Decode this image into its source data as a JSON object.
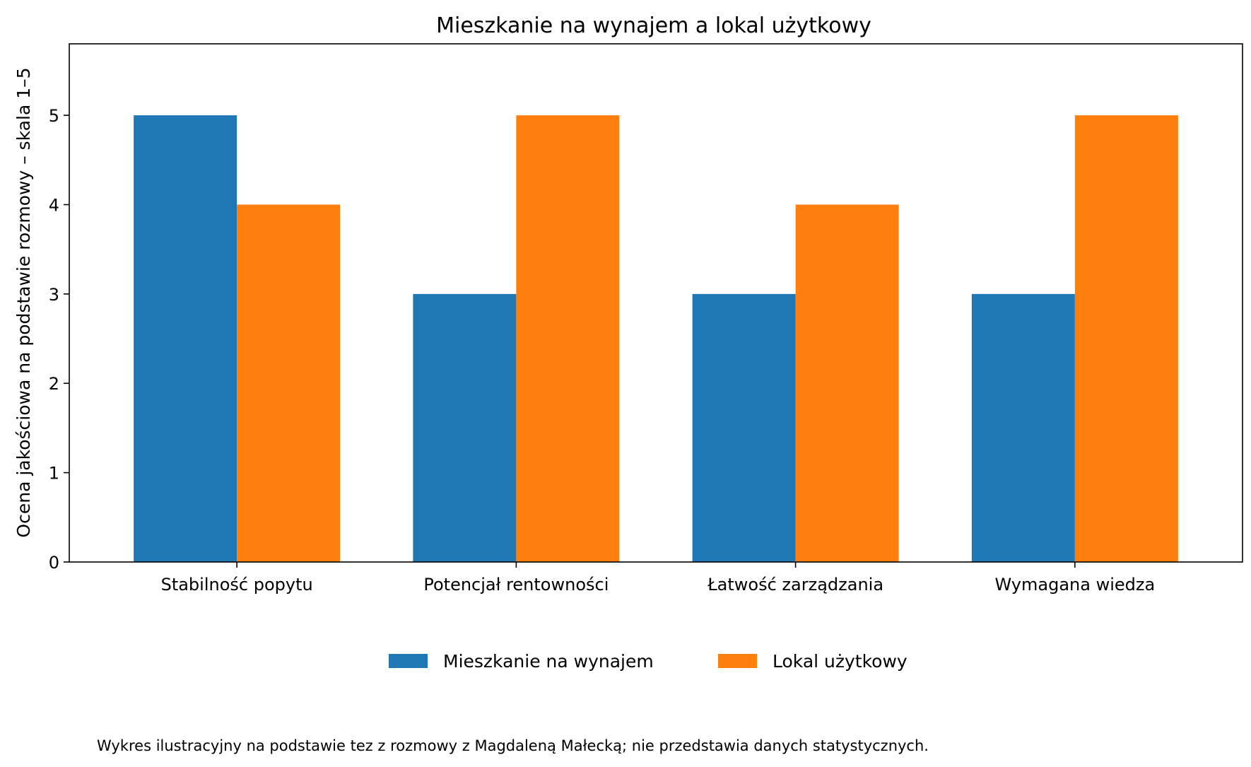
{
  "chart_data": {
    "type": "bar",
    "title": "Mieszkanie na wynajem a lokal użytkowy",
    "xlabel": "",
    "ylabel": "Ocena jakościowa na podstawie rozmowy – skala 1–5",
    "categories": [
      "Stabilność popytu",
      "Potencjał rentowności",
      "Łatwość zarządzania",
      "Wymagana wiedza"
    ],
    "series": [
      {
        "name": "Mieszkanie na wynajem",
        "values": [
          5,
          3,
          3,
          3
        ],
        "color": "#1f77b4"
      },
      {
        "name": "Lokal użytkowy",
        "values": [
          4,
          5,
          4,
          5
        ],
        "color": "#ff7f0e"
      }
    ],
    "ylim": [
      0,
      5.8
    ],
    "yticks": [
      0,
      1,
      2,
      3,
      4,
      5
    ],
    "grid": false,
    "legend_position": "bottom-center",
    "footnote": "Wykres ilustracyjny na podstawie tez z rozmowy z Magdaleną Małecką; nie przedstawia danych statystycznych."
  }
}
